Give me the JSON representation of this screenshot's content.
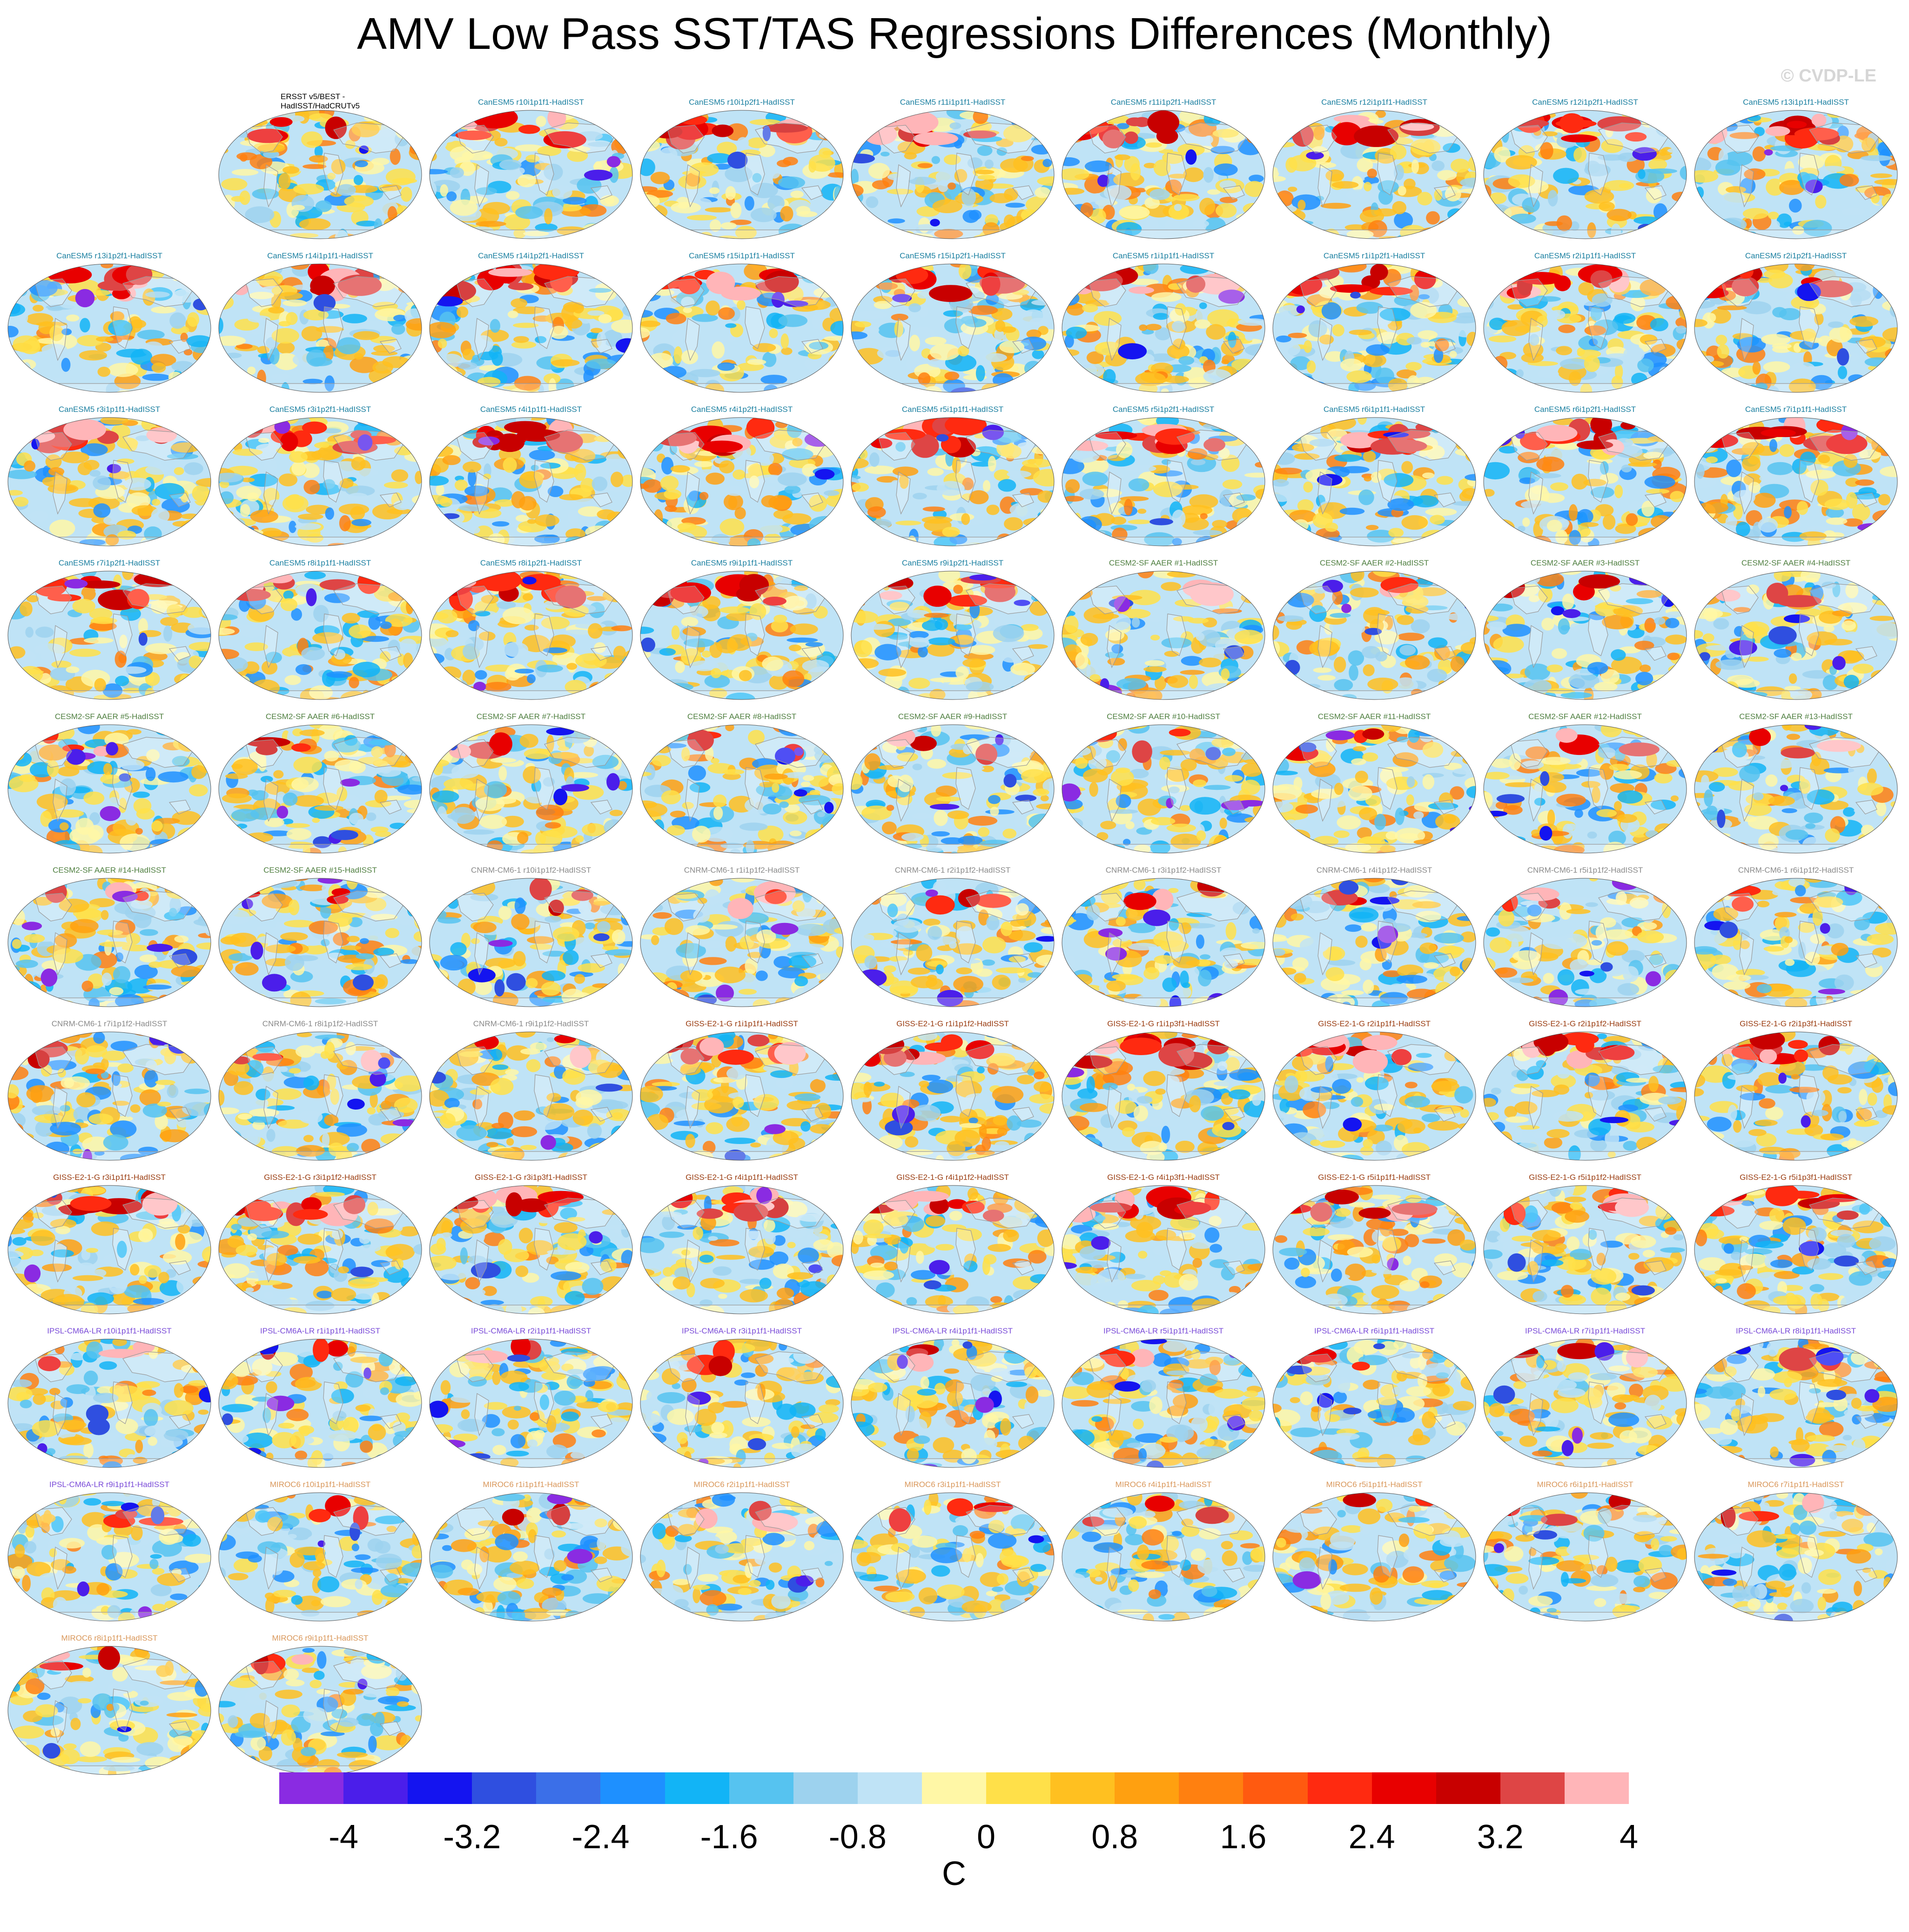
{
  "title": "AMV Low Pass SST/TAS Regressions Differences (Monthly)",
  "watermark": "© CVDP-LE",
  "colors": {
    "CanESM5": "#1a7fa0",
    "CESM2-SF": "#4f7f40",
    "CNRM-CM6-1": "#8a8a8a",
    "GISS-E2-1-G": "#9a3c10",
    "IPSL-CM6A-LR": "#7a4bd8",
    "MIROC6": "#d9975a",
    "obs": "#000000"
  },
  "chart_data": {
    "type": "heatmap",
    "description_units": "C",
    "colorbar": {
      "levels": [
        -4,
        -3.2,
        -2.4,
        -1.6,
        -0.8,
        0,
        0.8,
        1.6,
        2.4,
        3.2,
        4
      ],
      "tick_labels": [
        "-4",
        "-3.2",
        "-2.4",
        "-1.6",
        "-0.8",
        "0",
        "0.8",
        "1.6",
        "2.4",
        "3.2",
        "4"
      ],
      "colors": [
        "#8a2be2",
        "#4b1eea",
        "#1414f0",
        "#2f4fe0",
        "#3b6fe8",
        "#1e90ff",
        "#12b4f6",
        "#56c3f0",
        "#9dd2ee",
        "#bfe3f6",
        "#fff7a6",
        "#ffe049",
        "#ffc020",
        "#ffa010",
        "#ff8010",
        "#ff5a10",
        "#ff2a10",
        "#e80000",
        "#c80000",
        "#de4545",
        "#ffb5b8"
      ],
      "units": "C"
    },
    "panels": [
      {
        "label": "ERSST v5/BEST -\nHadISST/HadCRUTv5",
        "group": "obs",
        "multi": true
      },
      {
        "label": "CanESM5 r10i1p1f1-HadISST",
        "group": "CanESM5"
      },
      {
        "label": "CanESM5 r10i1p2f1-HadISST",
        "group": "CanESM5"
      },
      {
        "label": "CanESM5 r11i1p1f1-HadISST",
        "group": "CanESM5"
      },
      {
        "label": "CanESM5 r11i1p2f1-HadISST",
        "group": "CanESM5"
      },
      {
        "label": "CanESM5 r12i1p1f1-HadISST",
        "group": "CanESM5"
      },
      {
        "label": "CanESM5 r12i1p2f1-HadISST",
        "group": "CanESM5"
      },
      {
        "label": "CanESM5 r13i1p1f1-HadISST",
        "group": "CanESM5"
      },
      {
        "label": "CanESM5 r13i1p2f1-HadISST",
        "group": "CanESM5"
      },
      {
        "label": "CanESM5 r14i1p1f1-HadISST",
        "group": "CanESM5"
      },
      {
        "label": "CanESM5 r14i1p2f1-HadISST",
        "group": "CanESM5"
      },
      {
        "label": "CanESM5 r15i1p1f1-HadISST",
        "group": "CanESM5"
      },
      {
        "label": "CanESM5 r15i1p2f1-HadISST",
        "group": "CanESM5"
      },
      {
        "label": "CanESM5 r1i1p1f1-HadISST",
        "group": "CanESM5"
      },
      {
        "label": "CanESM5 r1i1p2f1-HadISST",
        "group": "CanESM5"
      },
      {
        "label": "CanESM5 r2i1p1f1-HadISST",
        "group": "CanESM5"
      },
      {
        "label": "CanESM5 r2i1p2f1-HadISST",
        "group": "CanESM5"
      },
      {
        "label": "CanESM5 r3i1p1f1-HadISST",
        "group": "CanESM5"
      },
      {
        "label": "CanESM5 r3i1p2f1-HadISST",
        "group": "CanESM5"
      },
      {
        "label": "CanESM5 r4i1p1f1-HadISST",
        "group": "CanESM5"
      },
      {
        "label": "CanESM5 r4i1p2f1-HadISST",
        "group": "CanESM5"
      },
      {
        "label": "CanESM5 r5i1p1f1-HadISST",
        "group": "CanESM5"
      },
      {
        "label": "CanESM5 r5i1p2f1-HadISST",
        "group": "CanESM5"
      },
      {
        "label": "CanESM5 r6i1p1f1-HadISST",
        "group": "CanESM5"
      },
      {
        "label": "CanESM5 r6i1p2f1-HadISST",
        "group": "CanESM5"
      },
      {
        "label": "CanESM5 r7i1p1f1-HadISST",
        "group": "CanESM5"
      },
      {
        "label": "CanESM5 r7i1p2f1-HadISST",
        "group": "CanESM5"
      },
      {
        "label": "CanESM5 r8i1p1f1-HadISST",
        "group": "CanESM5"
      },
      {
        "label": "CanESM5 r8i1p2f1-HadISST",
        "group": "CanESM5"
      },
      {
        "label": "CanESM5 r9i1p1f1-HadISST",
        "group": "CanESM5"
      },
      {
        "label": "CanESM5 r9i1p2f1-HadISST",
        "group": "CanESM5"
      },
      {
        "label": "CESM2-SF AAER #1-HadISST",
        "group": "CESM2-SF"
      },
      {
        "label": "CESM2-SF AAER #2-HadISST",
        "group": "CESM2-SF"
      },
      {
        "label": "CESM2-SF AAER #3-HadISST",
        "group": "CESM2-SF"
      },
      {
        "label": "CESM2-SF AAER #4-HadISST",
        "group": "CESM2-SF"
      },
      {
        "label": "CESM2-SF AAER #5-HadISST",
        "group": "CESM2-SF"
      },
      {
        "label": "CESM2-SF AAER #6-HadISST",
        "group": "CESM2-SF"
      },
      {
        "label": "CESM2-SF AAER #7-HadISST",
        "group": "CESM2-SF"
      },
      {
        "label": "CESM2-SF AAER #8-HadISST",
        "group": "CESM2-SF"
      },
      {
        "label": "CESM2-SF AAER #9-HadISST",
        "group": "CESM2-SF"
      },
      {
        "label": "CESM2-SF AAER #10-HadISST",
        "group": "CESM2-SF"
      },
      {
        "label": "CESM2-SF AAER #11-HadISST",
        "group": "CESM2-SF"
      },
      {
        "label": "CESM2-SF AAER #12-HadISST",
        "group": "CESM2-SF"
      },
      {
        "label": "CESM2-SF AAER #13-HadISST",
        "group": "CESM2-SF"
      },
      {
        "label": "CESM2-SF AAER #14-HadISST",
        "group": "CESM2-SF"
      },
      {
        "label": "CESM2-SF AAER #15-HadISST",
        "group": "CESM2-SF"
      },
      {
        "label": "CNRM-CM6-1 r10i1p1f2-HadISST",
        "group": "CNRM-CM6-1"
      },
      {
        "label": "CNRM-CM6-1 r1i1p1f2-HadISST",
        "group": "CNRM-CM6-1"
      },
      {
        "label": "CNRM-CM6-1 r2i1p1f2-HadISST",
        "group": "CNRM-CM6-1"
      },
      {
        "label": "CNRM-CM6-1 r3i1p1f2-HadISST",
        "group": "CNRM-CM6-1"
      },
      {
        "label": "CNRM-CM6-1 r4i1p1f2-HadISST",
        "group": "CNRM-CM6-1"
      },
      {
        "label": "CNRM-CM6-1 r5i1p1f2-HadISST",
        "group": "CNRM-CM6-1"
      },
      {
        "label": "CNRM-CM6-1 r6i1p1f2-HadISST",
        "group": "CNRM-CM6-1"
      },
      {
        "label": "CNRM-CM6-1 r7i1p1f2-HadISST",
        "group": "CNRM-CM6-1"
      },
      {
        "label": "CNRM-CM6-1 r8i1p1f2-HadISST",
        "group": "CNRM-CM6-1"
      },
      {
        "label": "CNRM-CM6-1 r9i1p1f2-HadISST",
        "group": "CNRM-CM6-1"
      },
      {
        "label": "GISS-E2-1-G r1i1p1f1-HadISST",
        "group": "GISS-E2-1-G"
      },
      {
        "label": "GISS-E2-1-G r1i1p1f2-HadISST",
        "group": "GISS-E2-1-G"
      },
      {
        "label": "GISS-E2-1-G r1i1p3f1-HadISST",
        "group": "GISS-E2-1-G"
      },
      {
        "label": "GISS-E2-1-G r2i1p1f1-HadISST",
        "group": "GISS-E2-1-G"
      },
      {
        "label": "GISS-E2-1-G r2i1p1f2-HadISST",
        "group": "GISS-E2-1-G"
      },
      {
        "label": "GISS-E2-1-G r2i1p3f1-HadISST",
        "group": "GISS-E2-1-G"
      },
      {
        "label": "GISS-E2-1-G r3i1p1f1-HadISST",
        "group": "GISS-E2-1-G"
      },
      {
        "label": "GISS-E2-1-G r3i1p1f2-HadISST",
        "group": "GISS-E2-1-G"
      },
      {
        "label": "GISS-E2-1-G r3i1p3f1-HadISST",
        "group": "GISS-E2-1-G"
      },
      {
        "label": "GISS-E2-1-G r4i1p1f1-HadISST",
        "group": "GISS-E2-1-G"
      },
      {
        "label": "GISS-E2-1-G r4i1p1f2-HadISST",
        "group": "GISS-E2-1-G"
      },
      {
        "label": "GISS-E2-1-G r4i1p3f1-HadISST",
        "group": "GISS-E2-1-G"
      },
      {
        "label": "GISS-E2-1-G r5i1p1f1-HadISST",
        "group": "GISS-E2-1-G"
      },
      {
        "label": "GISS-E2-1-G r5i1p1f2-HadISST",
        "group": "GISS-E2-1-G"
      },
      {
        "label": "GISS-E2-1-G r5i1p3f1-HadISST",
        "group": "GISS-E2-1-G"
      },
      {
        "label": "IPSL-CM6A-LR r10i1p1f1-HadISST",
        "group": "IPSL-CM6A-LR"
      },
      {
        "label": "IPSL-CM6A-LR r1i1p1f1-HadISST",
        "group": "IPSL-CM6A-LR"
      },
      {
        "label": "IPSL-CM6A-LR r2i1p1f1-HadISST",
        "group": "IPSL-CM6A-LR"
      },
      {
        "label": "IPSL-CM6A-LR r3i1p1f1-HadISST",
        "group": "IPSL-CM6A-LR"
      },
      {
        "label": "IPSL-CM6A-LR r4i1p1f1-HadISST",
        "group": "IPSL-CM6A-LR"
      },
      {
        "label": "IPSL-CM6A-LR r5i1p1f1-HadISST",
        "group": "IPSL-CM6A-LR"
      },
      {
        "label": "IPSL-CM6A-LR r6i1p1f1-HadISST",
        "group": "IPSL-CM6A-LR"
      },
      {
        "label": "IPSL-CM6A-LR r7i1p1f1-HadISST",
        "group": "IPSL-CM6A-LR"
      },
      {
        "label": "IPSL-CM6A-LR r8i1p1f1-HadISST",
        "group": "IPSL-CM6A-LR"
      },
      {
        "label": "IPSL-CM6A-LR r9i1p1f1-HadISST",
        "group": "IPSL-CM6A-LR"
      },
      {
        "label": "MIROC6 r10i1p1f1-HadISST",
        "group": "MIROC6"
      },
      {
        "label": "MIROC6 r1i1p1f1-HadISST",
        "group": "MIROC6"
      },
      {
        "label": "MIROC6 r2i1p1f1-HadISST",
        "group": "MIROC6"
      },
      {
        "label": "MIROC6 r3i1p1f1-HadISST",
        "group": "MIROC6"
      },
      {
        "label": "MIROC6 r4i1p1f1-HadISST",
        "group": "MIROC6"
      },
      {
        "label": "MIROC6 r5i1p1f1-HadISST",
        "group": "MIROC6"
      },
      {
        "label": "MIROC6 r6i1p1f1-HadISST",
        "group": "MIROC6"
      },
      {
        "label": "MIROC6 r7i1p1f1-HadISST",
        "group": "MIROC6"
      },
      {
        "label": "MIROC6 r8i1p1f1-HadISST",
        "group": "MIROC6"
      },
      {
        "label": "MIROC6 r9i1p1f1-HadISST",
        "group": "MIROC6"
      }
    ]
  }
}
